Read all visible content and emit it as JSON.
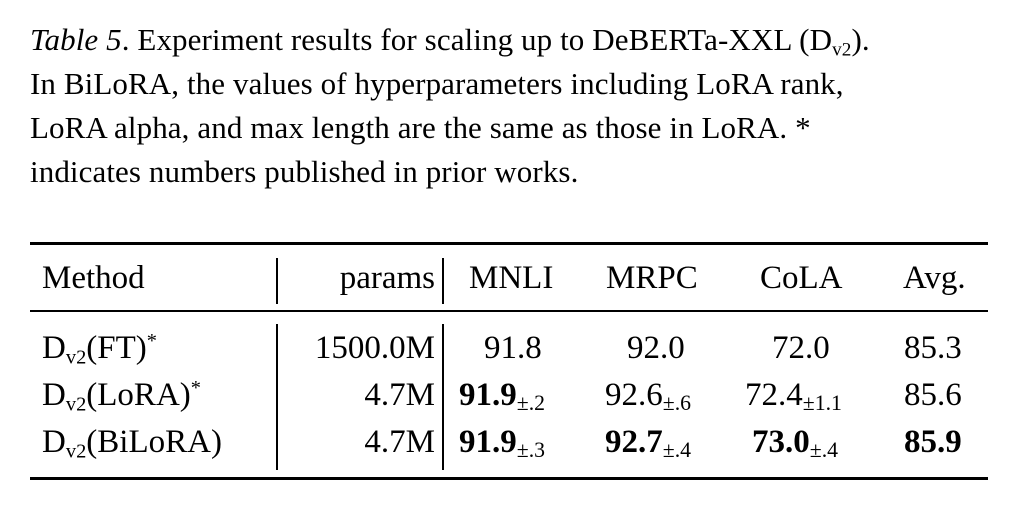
{
  "caption": {
    "label": "Table 5",
    "text_before": ". Experiment results for scaling up to DeBERTa-XXL (D",
    "sub": "v2",
    "text_after": ")."
  },
  "caption_lines": [
    "In BiLoRA, the values of hyperparameters including LoRA rank,",
    "LoRA alpha, and max length are the same as those in LoRA. *",
    "indicates numbers published in prior works."
  ],
  "table": {
    "headers": {
      "method": "Method",
      "params": "params",
      "mnli": "MNLI",
      "mrpc": "MRPC",
      "cola": "CoLA",
      "avg": "Avg."
    },
    "rows": [
      {
        "method_base": "D",
        "method_sub": "v2",
        "method_name": "(FT)",
        "method_sup": "*",
        "params": "1500.0M",
        "mnli": "91.8",
        "mnli_pm": "",
        "mrpc": "92.0",
        "mrpc_pm": "",
        "cola": "72.0",
        "cola_pm": "",
        "avg": "85.3"
      },
      {
        "method_base": "D",
        "method_sub": "v2",
        "method_name": "(LoRA)",
        "method_sup": "*",
        "params": "4.7M",
        "mnli": "91.9",
        "mnli_pm": "±.2",
        "mrpc": "92.6",
        "mrpc_pm": "±.6",
        "cola": "72.4",
        "cola_pm": "±1.1",
        "avg": "85.6"
      },
      {
        "method_base": "D",
        "method_sub": "v2",
        "method_name": "(BiLoRA)",
        "method_sup": "",
        "params": "4.7M",
        "mnli": "91.9",
        "mnli_pm": "±.3",
        "mrpc": "92.7",
        "mrpc_pm": "±.4",
        "cola": "73.0",
        "cola_pm": "±.4",
        "avg": "85.9"
      }
    ]
  }
}
